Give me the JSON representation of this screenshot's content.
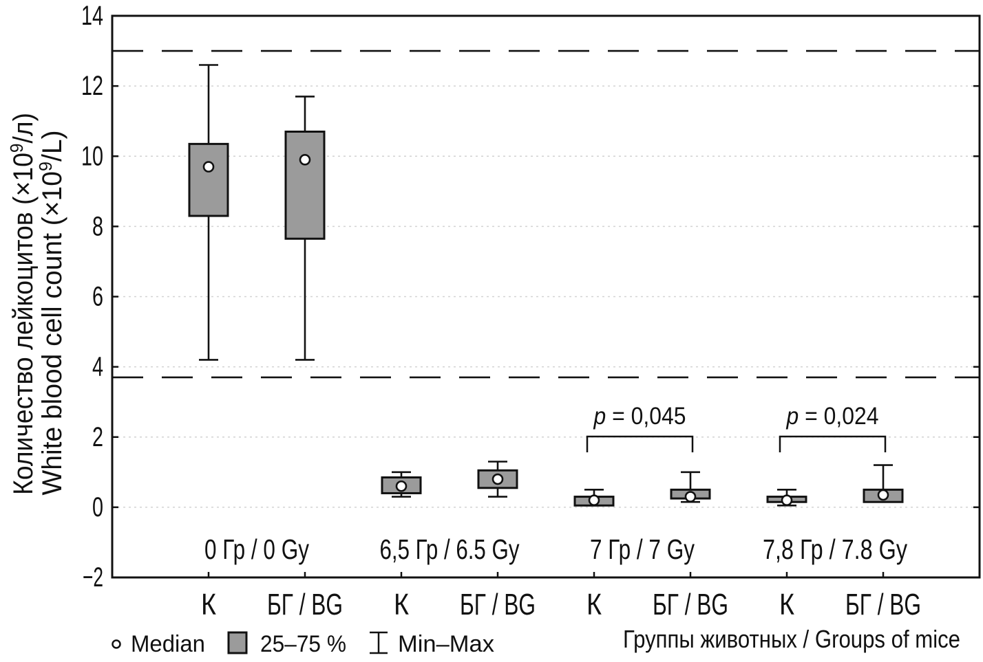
{
  "chart_data": {
    "type": "box",
    "title": "",
    "ylabel_ru": {
      "pre": "Количество лейкоцитов (×10",
      "sup": "9",
      "post": "/л)"
    },
    "ylabel_en": {
      "pre": "White blood cell count (×10",
      "sup": "9",
      "post": "/L)"
    },
    "xlabel": "Группы животных / Groups of mice",
    "ylim": [
      -2,
      14
    ],
    "yticks": [
      14,
      12,
      10,
      8,
      6,
      4,
      2,
      0,
      -2
    ],
    "grid_values": [
      12,
      10,
      8,
      6,
      4,
      2,
      0
    ],
    "reference_lines": [
      13.0,
      3.7
    ],
    "legend": [
      {
        "symbol": "median-circle",
        "label": "Median"
      },
      {
        "symbol": "iqr-box",
        "label": "25–75 %"
      },
      {
        "symbol": "min-max-whisker",
        "label": "Min–Max"
      }
    ],
    "dose_groups": [
      {
        "dose_label": "0 Гр / 0 Gy",
        "boxes": [
          {
            "x_label": "К",
            "median": 9.7,
            "q1": 8.3,
            "q3": 10.35,
            "min": 4.2,
            "max": 12.6
          },
          {
            "x_label": "БГ / BG",
            "median": 9.9,
            "q1": 7.65,
            "q3": 10.7,
            "min": 4.2,
            "max": 11.7
          }
        ]
      },
      {
        "dose_label": "6,5 Гр / 6.5 Gy",
        "boxes": [
          {
            "x_label": "К",
            "median": 0.6,
            "q1": 0.4,
            "q3": 0.85,
            "min": 0.3,
            "max": 1.0
          },
          {
            "x_label": "БГ / BG",
            "median": 0.8,
            "q1": 0.55,
            "q3": 1.05,
            "min": 0.3,
            "max": 1.3
          }
        ]
      },
      {
        "dose_label": "7 Гр / 7 Gy",
        "p_value": "p = 0,045",
        "boxes": [
          {
            "x_label": "К",
            "median": 0.2,
            "q1": 0.05,
            "q3": 0.3,
            "min": 0.05,
            "max": 0.5
          },
          {
            "x_label": "БГ / BG",
            "median": 0.3,
            "q1": 0.25,
            "q3": 0.5,
            "min": 0.15,
            "max": 1.0
          }
        ]
      },
      {
        "dose_label": "7,8 Гр / 7.8 Gy",
        "p_value": "p = 0,024",
        "boxes": [
          {
            "x_label": "К",
            "median": 0.2,
            "q1": 0.15,
            "q3": 0.3,
            "min": 0.05,
            "max": 0.5
          },
          {
            "x_label": "БГ / BG",
            "median": 0.35,
            "q1": 0.15,
            "q3": 0.5,
            "min": 0.15,
            "max": 1.2
          }
        ]
      }
    ],
    "colors": {
      "box_fill": "#9b9b9b",
      "line": "#111111",
      "grid": "#d2d2d2",
      "background": "#ffffff"
    }
  }
}
